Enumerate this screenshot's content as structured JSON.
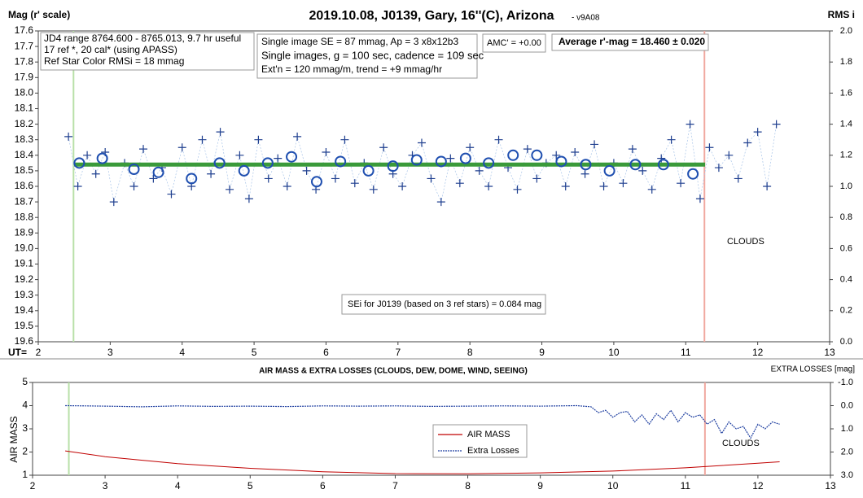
{
  "chart_data": [
    {
      "type": "scatter",
      "title": "2019.10.08, J0139, Gary, 16''(C), Arizona",
      "subtitle": "- v9A08",
      "y_label": "Mag (r' scale)",
      "y2_label": "RMS i",
      "x_label": "UT=",
      "annotations": [
        "JD4 range 8764.600 - 8765.013, 9.7 hr useful",
        "17 ref *, 20 cal* (using APASS)",
        "Ref Star Color RMSi = 18 mmag",
        "Single image SE = 87 mmag, Ap = 3 x8x12b3",
        "Single images, g = 100 sec, cadence = 109 sec",
        "Ext'n = 120 mmag/m, trend = +9 mmag/hr",
        "AMC' = +0.00",
        "Average r'-mag =  18.460 ± 0.020",
        "SEi for J0139 (based on 3 ref stars) = 0.084 mag",
        "CLOUDS"
      ],
      "xlim": [
        2,
        13
      ],
      "xticks": [
        2,
        3,
        4,
        5,
        6,
        7,
        8,
        9,
        10,
        11,
        12,
        13
      ],
      "ylim": [
        19.6,
        17.6
      ],
      "yticks": [
        17.6,
        17.7,
        17.8,
        17.9,
        {
          "value": 18.0,
          "label": "18.0"
        },
        18.1,
        18.2,
        18.3,
        18.4,
        18.5,
        18.6,
        18.7,
        18.8,
        18.9,
        {
          "value": 19.0,
          "label": "19.0"
        },
        19.1,
        19.2,
        19.3,
        19.4,
        19.5,
        19.6
      ],
      "y2lim": [
        0,
        2
      ],
      "y2ticks": [
        {
          "value": 0,
          "label": "0.0"
        },
        0.2,
        0.4,
        0.6,
        0.8,
        {
          "value": 1,
          "label": "1.0"
        },
        1.2,
        1.4,
        1.6,
        1.8,
        {
          "value": 2,
          "label": "2.0"
        }
      ],
      "vlines": [
        {
          "x": 2.49,
          "color": "#b8e0a8"
        },
        {
          "x": 11.26,
          "color": "#f0a8a0"
        }
      ],
      "series": [
        {
          "marker": "cross",
          "color": "#1f3f8f",
          "x": [
            2.42,
            2.55,
            2.68,
            2.8,
            2.93,
            3.05,
            3.2,
            3.33,
            3.46,
            3.6,
            3.72,
            3.85,
            4.0,
            4.13,
            4.28,
            4.4,
            4.53,
            4.66,
            4.8,
            4.93,
            5.06,
            5.2,
            5.33,
            5.46,
            5.6,
            5.73,
            5.86,
            6.0,
            6.13,
            6.26,
            6.4,
            6.53,
            6.66,
            6.8,
            6.93,
            7.06,
            7.2,
            7.33,
            7.46,
            7.6,
            7.73,
            7.86,
            8.0,
            8.13,
            8.26,
            8.4,
            8.53,
            8.66,
            8.8,
            8.93,
            9.06,
            9.2,
            9.33,
            9.46,
            9.6,
            9.73,
            9.86,
            10.0,
            10.13,
            10.26,
            10.4,
            10.53,
            10.66,
            10.8,
            10.93,
            11.06,
            11.2,
            11.33,
            11.46,
            11.6,
            11.73,
            11.86,
            12.0,
            12.13,
            12.26
          ],
          "values": [
            18.28,
            18.6,
            18.4,
            18.52,
            18.38,
            18.7,
            18.45,
            18.6,
            18.36,
            18.55,
            18.48,
            18.65,
            18.35,
            18.6,
            18.3,
            18.52,
            18.25,
            18.62,
            18.4,
            18.68,
            18.3,
            18.55,
            18.42,
            18.6,
            18.28,
            18.5,
            18.62,
            18.38,
            18.55,
            18.3,
            18.58,
            18.45,
            18.62,
            18.35,
            18.52,
            18.6,
            18.4,
            18.32,
            18.55,
            18.7,
            18.42,
            18.58,
            18.35,
            18.5,
            18.6,
            18.3,
            18.48,
            18.62,
            18.36,
            18.55,
            18.45,
            18.4,
            18.6,
            18.38,
            18.52,
            18.33,
            18.6,
            18.45,
            18.58,
            18.36,
            18.5,
            18.62,
            18.42,
            18.3,
            18.58,
            18.2,
            18.68,
            18.35,
            18.48,
            18.4,
            18.55,
            18.32,
            18.25,
            18.6,
            18.2
          ]
        },
        {
          "marker": "line",
          "color": "#3a9a3a",
          "x": [
            2.5,
            11.27
          ],
          "values": [
            18.46,
            18.46
          ]
        },
        {
          "marker": "circle",
          "color": "#1f4fb0",
          "x": [
            2.57,
            2.89,
            3.33,
            3.67,
            4.13,
            4.52,
            4.86,
            5.19,
            5.52,
            5.87,
            6.2,
            6.59,
            6.93,
            7.26,
            7.6,
            7.94,
            8.26,
            8.6,
            8.93,
            9.27,
            9.61,
            9.94,
            10.3,
            10.69,
            11.1
          ],
          "values": [
            18.45,
            18.42,
            18.49,
            18.51,
            18.55,
            18.45,
            18.5,
            18.45,
            18.41,
            18.57,
            18.44,
            18.5,
            18.47,
            18.43,
            18.44,
            18.42,
            18.45,
            18.4,
            18.4,
            18.44,
            18.46,
            18.5,
            18.46,
            18.46,
            18.52
          ]
        }
      ]
    },
    {
      "type": "line",
      "title": "AIR MASS & EXTRA LOSSES (CLOUDS, DEW, DOME, WIND, SEEING)",
      "y_label": "AIR MASS",
      "y2_label": "EXTRA LOSSES [mag]",
      "annotations": [
        "CLOUDS"
      ],
      "legend": "center",
      "xlim": [
        2,
        13
      ],
      "xticks": [
        2,
        3,
        4,
        5,
        6,
        7,
        8,
        9,
        10,
        11,
        12,
        13
      ],
      "ylim": [
        1,
        5
      ],
      "yticks": [
        1,
        2,
        3,
        4,
        5
      ],
      "y2lim": [
        3,
        -1
      ],
      "y2ticks": [
        {
          "value": -1,
          "label": "-1.0"
        },
        {
          "value": 0,
          "label": "0.0"
        },
        {
          "value": 1,
          "label": "1.0"
        },
        {
          "value": 2,
          "label": "2.0"
        },
        {
          "value": 3,
          "label": "3.0"
        }
      ],
      "vlines": [
        {
          "x": 2.5,
          "color": "#b8e0a8"
        },
        {
          "x": 11.27,
          "color": "#f0a8a0"
        }
      ],
      "series": [
        {
          "name": "AIR MASS",
          "color": "#c00000",
          "x": [
            2.45,
            3,
            4,
            5,
            6,
            7,
            8,
            9,
            10,
            11,
            12,
            12.3
          ],
          "values": [
            2.05,
            1.8,
            1.5,
            1.3,
            1.15,
            1.07,
            1.06,
            1.1,
            1.18,
            1.32,
            1.52,
            1.58
          ]
        },
        {
          "name": "Extra Losses",
          "color": "#1f3fa0",
          "axis": "y2",
          "dash": true,
          "x": [
            2.45,
            3,
            3.5,
            4,
            4.5,
            5,
            5.5,
            6,
            6.5,
            7,
            7.5,
            8,
            8.5,
            9,
            9.5,
            9.7,
            9.8,
            9.9,
            10,
            10.1,
            10.2,
            10.3,
            10.4,
            10.5,
            10.6,
            10.7,
            10.8,
            10.9,
            11,
            11.1,
            11.2,
            11.3,
            11.4,
            11.5,
            11.6,
            11.7,
            11.8,
            11.9,
            12,
            12.1,
            12.2,
            12.3
          ],
          "values": [
            0,
            0.02,
            0.05,
            0.01,
            0.03,
            0.02,
            0.04,
            0.01,
            0.02,
            0.01,
            0.03,
            0.02,
            0.01,
            0.02,
            0,
            0.05,
            0.3,
            0.2,
            0.5,
            0.3,
            0.25,
            0.7,
            0.4,
            0.8,
            0.35,
            0.6,
            0.2,
            0.7,
            0.3,
            0.5,
            0.4,
            0.8,
            0.6,
            1.2,
            0.7,
            1.0,
            0.9,
            1.4,
            0.8,
            1.0,
            0.7,
            0.8
          ]
        }
      ]
    }
  ]
}
